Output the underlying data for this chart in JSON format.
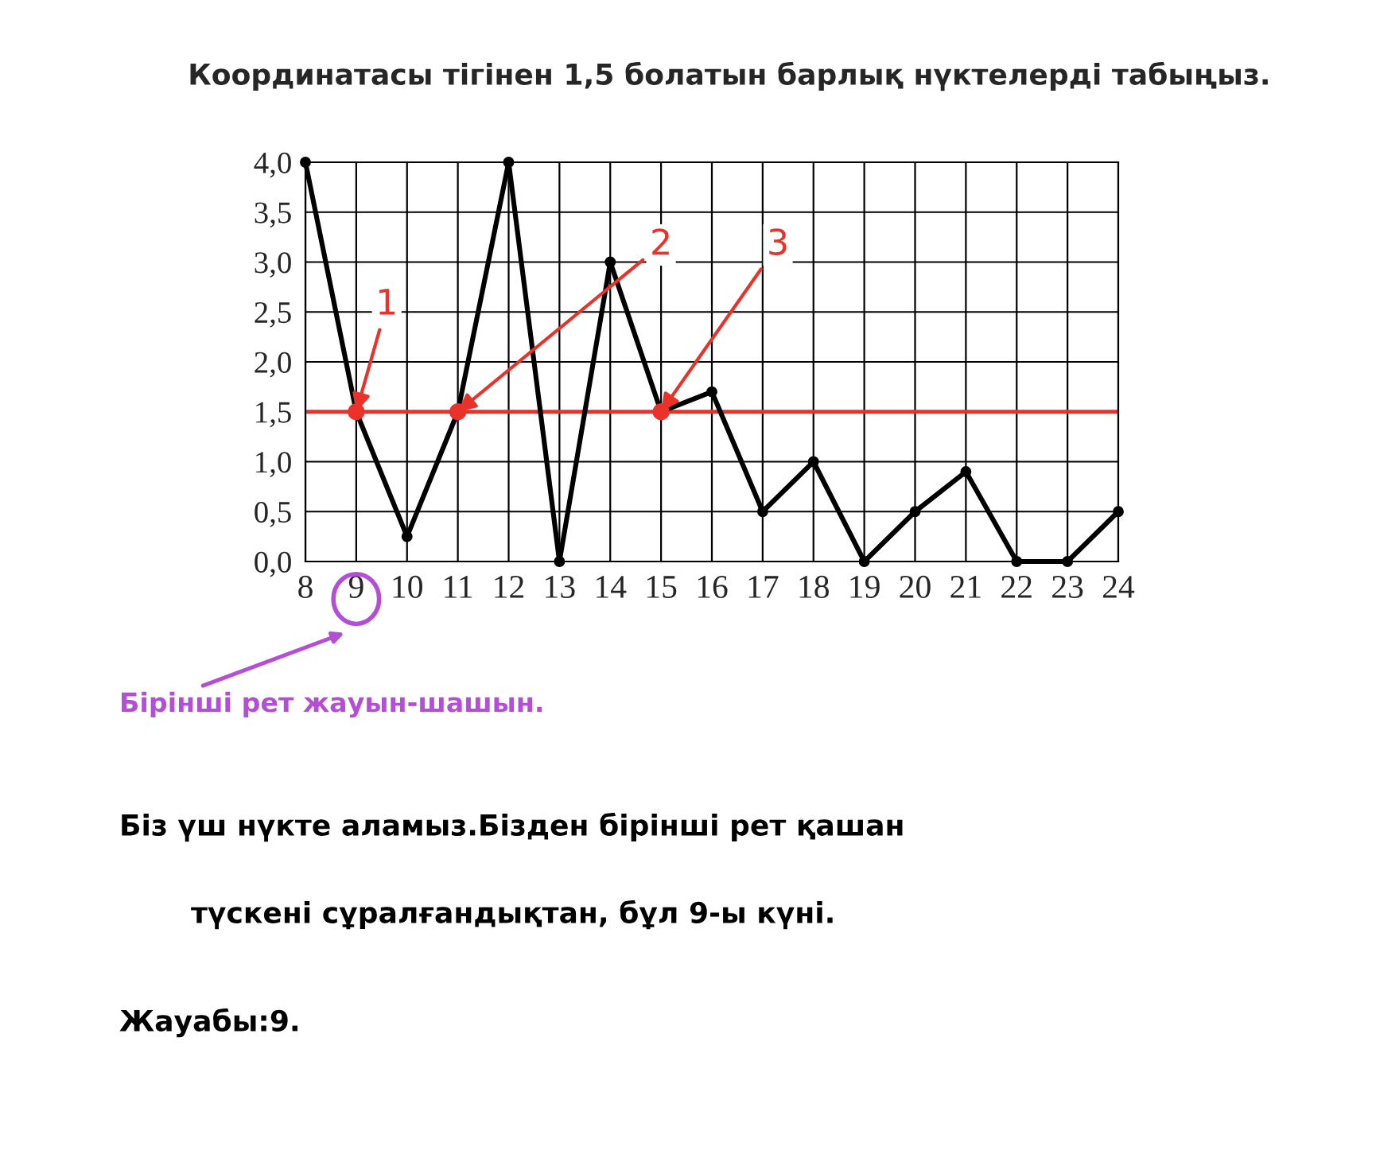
{
  "chart_data": {
    "type": "line",
    "title": "Координатасы тігінен 1,5 болатын барлық нүктелерді табыңыз.",
    "x": [
      8,
      9,
      10,
      11,
      12,
      13,
      14,
      15,
      16,
      17,
      18,
      19,
      20,
      21,
      22,
      23,
      24
    ],
    "series": [
      {
        "color": "#000000",
        "marker": "circle",
        "values": [
          4.0,
          1.5,
          0.25,
          1.5,
          4.0,
          0.0,
          3.0,
          1.5,
          1.7,
          0.5,
          1.0,
          0.0,
          0.5,
          0.9,
          0.0,
          0.0,
          0.5
        ]
      },
      {
        "type": "scatter",
        "color": "#e8322a",
        "x": [
          9,
          11,
          15
        ],
        "values": [
          1.5,
          1.5,
          1.5
        ]
      }
    ],
    "xlim": [
      8,
      24
    ],
    "ylim": [
      0,
      4
    ],
    "xticks": [
      8,
      9,
      10,
      11,
      12,
      13,
      14,
      15,
      16,
      17,
      18,
      19,
      20,
      21,
      22,
      23,
      24
    ],
    "yticks": [
      {
        "value": 0,
        "label": "0,0"
      },
      {
        "value": 0.5,
        "label": "0,5"
      },
      {
        "value": 1,
        "label": "1,0"
      },
      {
        "value": 1.5,
        "label": "1,5"
      },
      {
        "value": 2,
        "label": "2,0"
      },
      {
        "value": 2.5,
        "label": "2,5"
      },
      {
        "value": 3,
        "label": "3,0"
      },
      {
        "value": 3.5,
        "label": "3,5"
      },
      {
        "value": 4,
        "label": "4,0"
      }
    ],
    "grid": true,
    "ref_lines": [
      {
        "axis": "y",
        "value": 1.5,
        "color": "#e8322a"
      }
    ],
    "annotations": [
      {
        "text": "1",
        "x": 9,
        "y": 1.5
      },
      {
        "text": "2",
        "x": 11,
        "y": 1.5
      },
      {
        "text": "3",
        "x": 15,
        "y": 1.5
      },
      "Бірінші рет жауын-шашын.",
      "Біз үш нүкте аламыз.Бізден бірінші рет қашан",
      "түскені сұралғандықтан, бұл 9-ы күні.",
      "Жауабы:9."
    ]
  }
}
